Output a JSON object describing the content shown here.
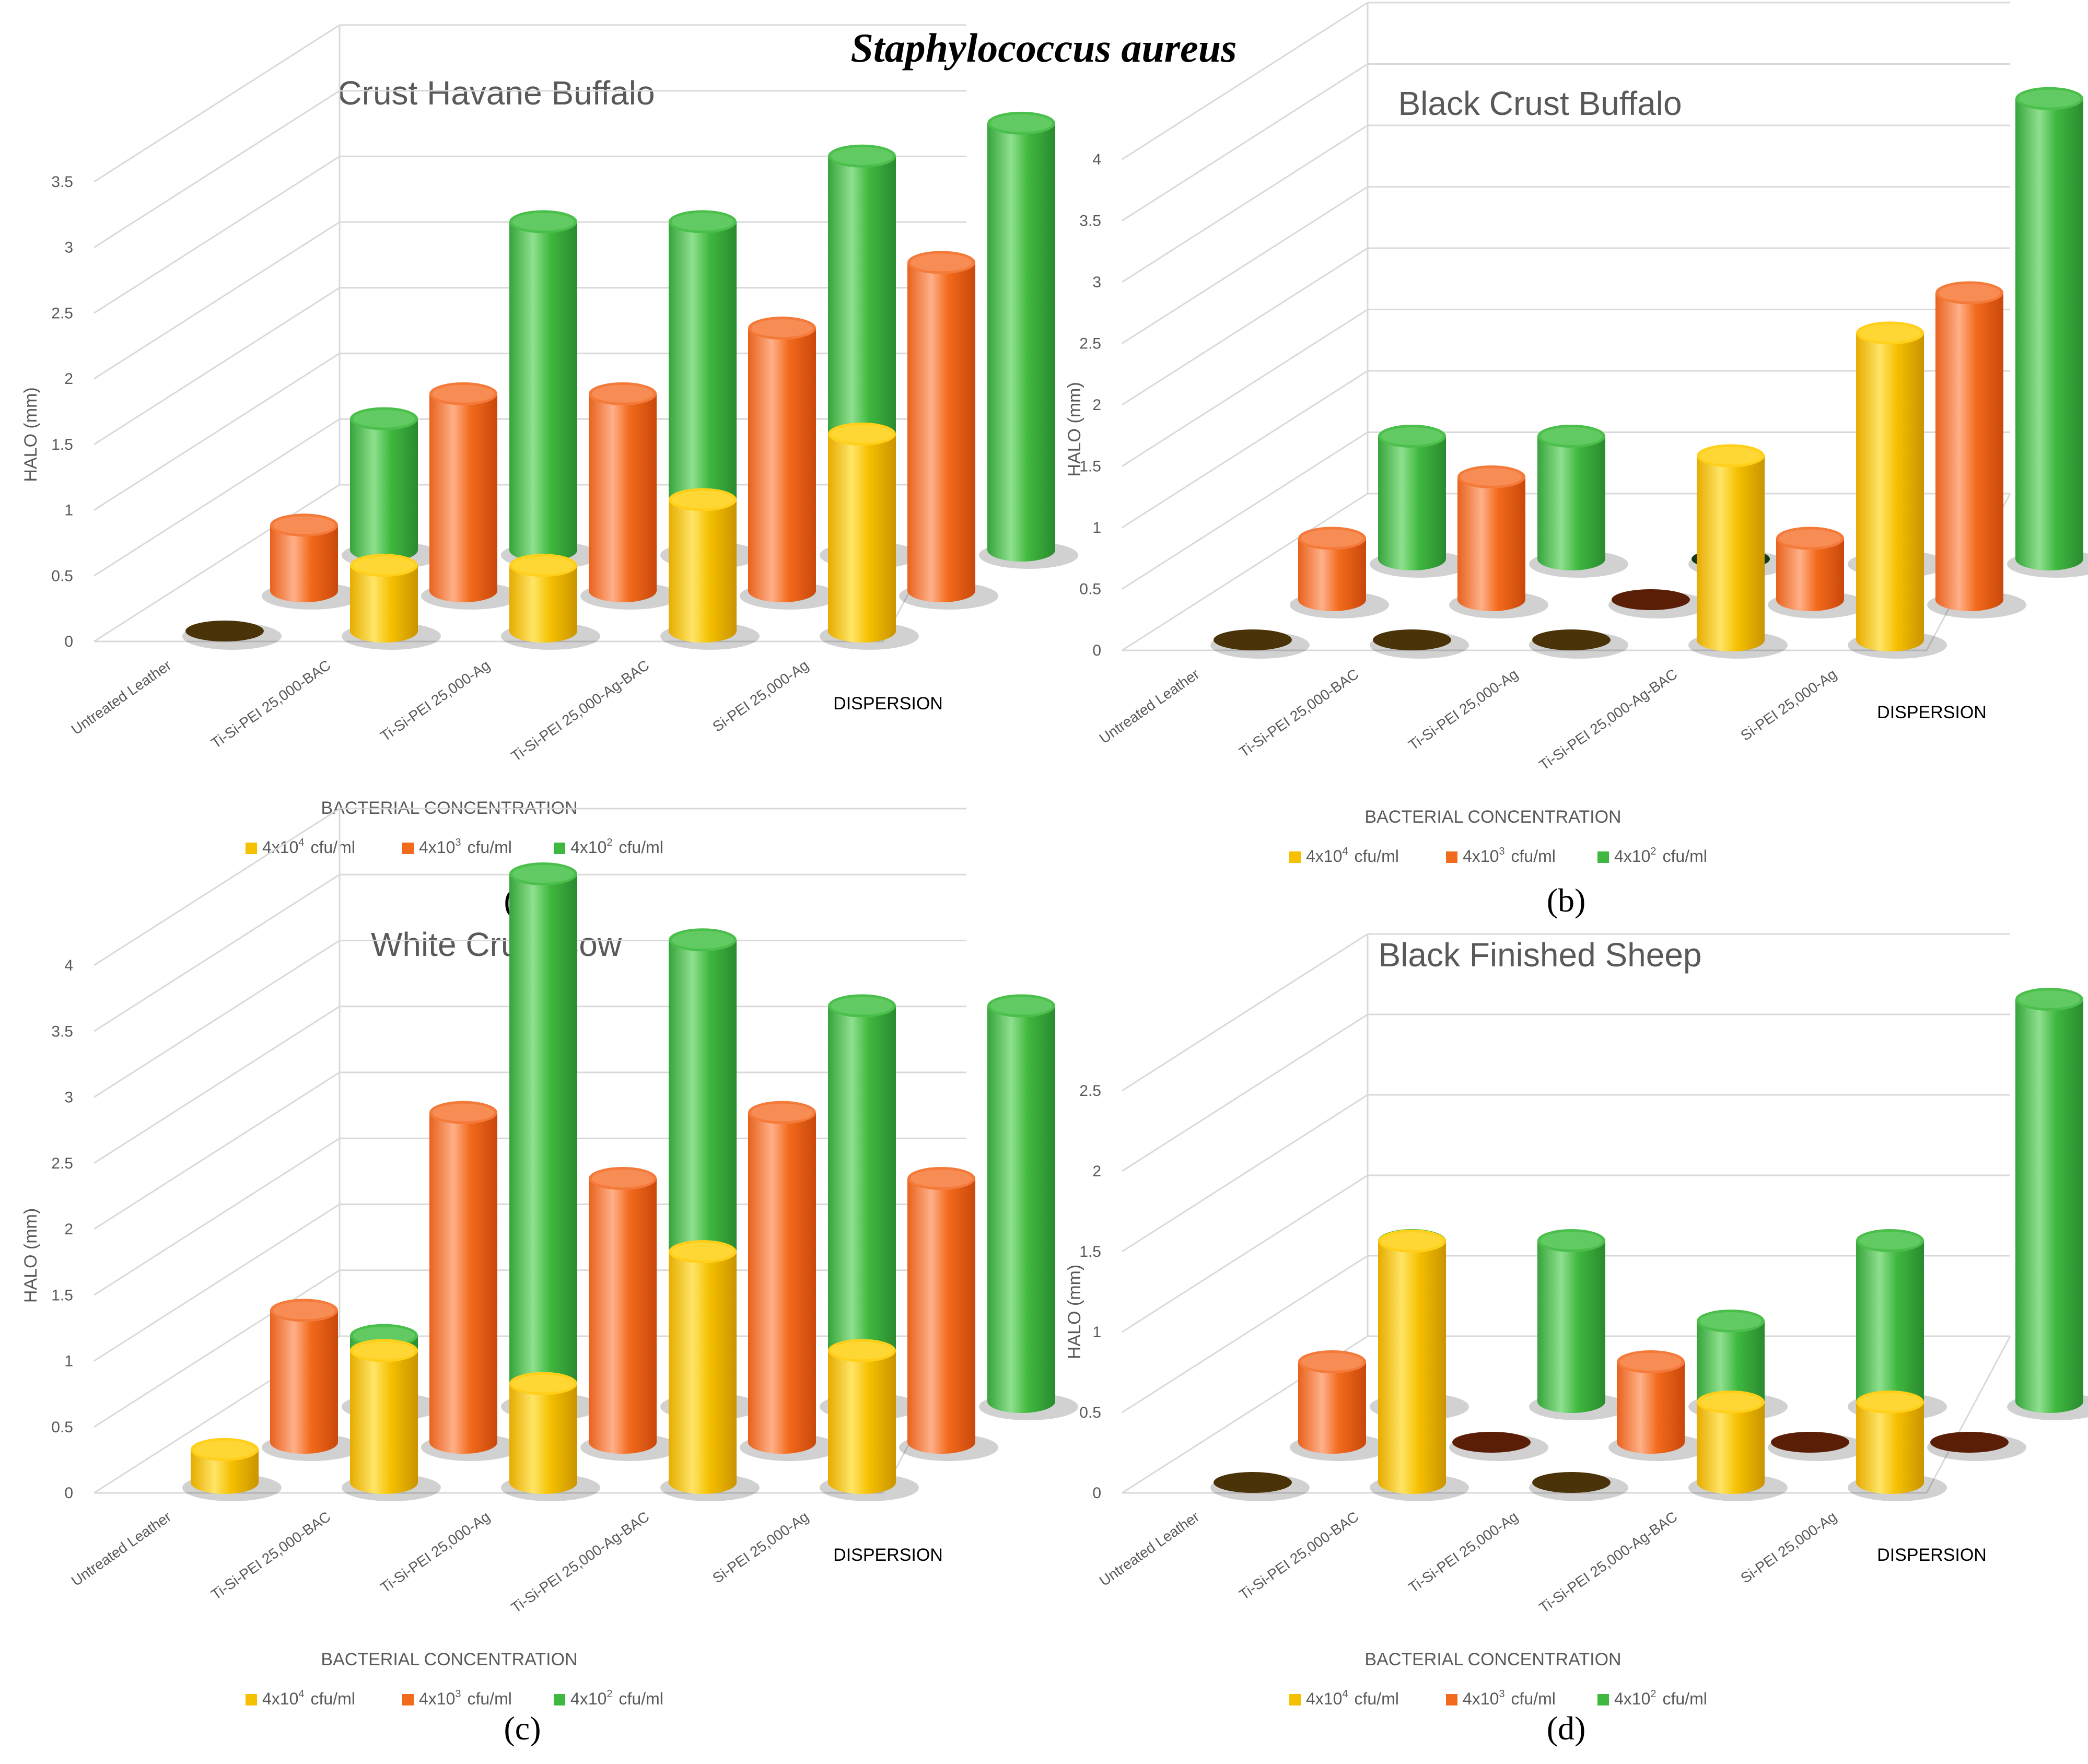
{
  "figure_title": "Staphylococcus aureus",
  "colors": {
    "series_light": [
      "#ffe566",
      "#ffb08a",
      "#8fe08f"
    ],
    "series_main": [
      "#f5c000",
      "#f26a1b",
      "#3fb83f"
    ],
    "series_dark": [
      "#c99400",
      "#c9470b",
      "#2a8a2f"
    ],
    "series_tops": [
      "#ffcf1a",
      "#f47a3a",
      "#4bbf4b"
    ],
    "zero_disc": [
      "#4a3308",
      "#5a1e06",
      "#14381a"
    ],
    "grid": "#d9d9d9",
    "axis_text": "#595959",
    "title_text": "#595959"
  },
  "chart_data": [
    {
      "panel": "a",
      "caption": "(a)",
      "type": "bar",
      "title": "Crust Havane Buffalo",
      "ylabel": "HALO (mm)",
      "xlabel": "BACTERIAL CONCENTRATION",
      "depth_axis_label": "DISPERSION",
      "ylim": [
        0,
        3.5
      ],
      "yticks": [
        "0",
        "0.5",
        "1",
        "1.5",
        "2",
        "2.5",
        "3",
        "3.5"
      ],
      "categories": [
        "Untreated Leather",
        "Ti-Si-PEI 25,000-BAC",
        "Ti-Si-PEI 25,000-Ag",
        "Ti-Si-PEI 25,000-Ag-BAC",
        "Si-PEI 25,000-Ag"
      ],
      "legend": [
        {
          "base": "4x10",
          "exp": "4",
          "unit": "cfu/ml"
        },
        {
          "base": "4x10",
          "exp": "3",
          "unit": "cfu/ml"
        },
        {
          "base": "4x10",
          "exp": "2",
          "unit": "cfu/ml"
        }
      ],
      "series": [
        {
          "name": "4x10^4 cfu/ml",
          "values": [
            0,
            0.5,
            0.5,
            1.0,
            1.5
          ]
        },
        {
          "name": "4x10^3 cfu/ml",
          "values": [
            0.5,
            1.5,
            1.5,
            2.0,
            2.5
          ]
        },
        {
          "name": "4x10^2 cfu/ml",
          "values": [
            1.0,
            2.5,
            2.5,
            3.0,
            3.25
          ]
        }
      ]
    },
    {
      "panel": "b",
      "caption": "(b)",
      "type": "bar",
      "title": "Black Crust Buffalo",
      "ylabel": "HALO (mm)",
      "xlabel": "BACTERIAL CONCENTRATION",
      "depth_axis_label": "DISPERSION",
      "ylim": [
        0,
        4
      ],
      "yticks": [
        "0",
        "0.5",
        "1",
        "1.5",
        "2",
        "2.5",
        "3",
        "3.5",
        "4"
      ],
      "categories": [
        "Untreated Leather",
        "Ti-Si-PEI 25,000-BAC",
        "Ti-Si-PEI 25,000-Ag",
        "Ti-Si-PEI 25,000-Ag-BAC",
        "Si-PEI 25,000-Ag"
      ],
      "legend": [
        {
          "base": "4x10",
          "exp": "4",
          "unit": "cfu/ml"
        },
        {
          "base": "4x10",
          "exp": "3",
          "unit": "cfu/ml"
        },
        {
          "base": "4x10",
          "exp": "2",
          "unit": "cfu/ml"
        }
      ],
      "series": [
        {
          "name": "4x10^4 cfu/ml",
          "values": [
            0,
            0,
            0,
            1.5,
            2.5
          ]
        },
        {
          "name": "4x10^3 cfu/ml",
          "values": [
            0.5,
            1.0,
            0,
            0.5,
            2.5
          ]
        },
        {
          "name": "4x10^2 cfu/ml",
          "values": [
            1.0,
            1.0,
            0,
            1.5,
            3.75
          ]
        }
      ]
    },
    {
      "panel": "c",
      "caption": "(c)",
      "type": "bar",
      "title": "White Crust Cow",
      "ylabel": "HALO (mm)",
      "xlabel": "BACTERIAL CONCENTRATION",
      "depth_axis_label": "DISPERSION",
      "ylim": [
        0,
        4
      ],
      "yticks": [
        "0",
        "0.5",
        "1",
        "1.5",
        "2",
        "2.5",
        "3",
        "3.5",
        "4"
      ],
      "categories": [
        "Untreated Leather",
        "Ti-Si-PEI 25,000-BAC",
        "Ti-Si-PEI 25,000-Ag",
        "Ti-Si-PEI 25,000-Ag-BAC",
        "Si-PEI 25,000-Ag"
      ],
      "legend": [
        {
          "base": "4x10",
          "exp": "4",
          "unit": "cfu/ml"
        },
        {
          "base": "4x10",
          "exp": "3",
          "unit": "cfu/ml"
        },
        {
          "base": "4x10",
          "exp": "2",
          "unit": "cfu/ml"
        }
      ],
      "series": [
        {
          "name": "4x10^4 cfu/ml",
          "values": [
            0.25,
            1.0,
            0.75,
            1.75,
            1.0
          ]
        },
        {
          "name": "4x10^3 cfu/ml",
          "values": [
            1.0,
            2.5,
            2.0,
            2.5,
            2.0
          ]
        },
        {
          "name": "4x10^2 cfu/ml",
          "values": [
            0.5,
            4.0,
            3.5,
            3.0,
            3.0
          ]
        }
      ]
    },
    {
      "panel": "d",
      "caption": "(d)",
      "type": "bar",
      "title": "Black Finished Sheep",
      "ylabel": "HALO (mm)",
      "xlabel": "BACTERIAL CONCENTRATION",
      "depth_axis_label": "DISPERSION",
      "ylim": [
        0,
        2.5
      ],
      "yticks": [
        "0",
        "0.5",
        "1",
        "1.5",
        "2",
        "2.5"
      ],
      "categories": [
        "Untreated Leather",
        "Ti-Si-PEI 25,000-BAC",
        "Ti-Si-PEI 25,000-Ag",
        "Ti-Si-PEI 25,000-Ag-BAC",
        "Si-PEI 25,000-Ag"
      ],
      "legend": [
        {
          "base": "4x10",
          "exp": "4",
          "unit": "cfu/ml"
        },
        {
          "base": "4x10",
          "exp": "3",
          "unit": "cfu/ml"
        },
        {
          "base": "4x10",
          "exp": "2",
          "unit": "cfu/ml"
        }
      ],
      "series": [
        {
          "name": "4x10^4 cfu/ml",
          "values": [
            0,
            1.5,
            0,
            0.5,
            0.5
          ]
        },
        {
          "name": "4x10^3 cfu/ml",
          "values": [
            0.5,
            0,
            0.5,
            0,
            0
          ]
        },
        {
          "name": "4x10^2 cfu/ml",
          "values": [
            1.0,
            1.0,
            0.5,
            1.0,
            2.5
          ]
        }
      ]
    }
  ]
}
